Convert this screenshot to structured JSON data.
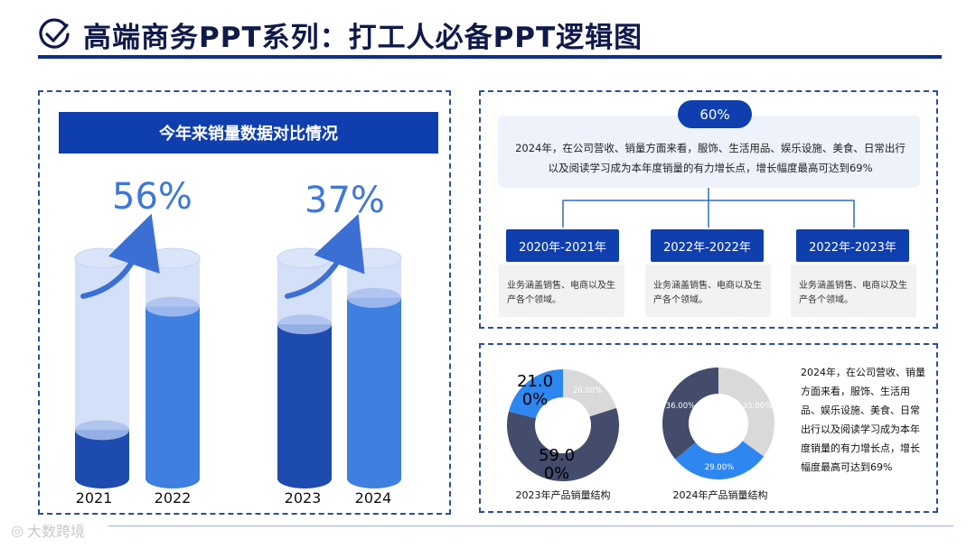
{
  "title": "高端商务PPT系列：打工人必备PPT逻辑图",
  "left_panel": {
    "header": "今年来销量数据对比情况",
    "pair1": {
      "pct": "56%",
      "years": [
        "2021",
        "2022"
      ],
      "levels": [
        0.22,
        0.78
      ]
    },
    "pair2": {
      "pct": "37%",
      "years": [
        "2023",
        "2024"
      ],
      "levels": [
        0.7,
        0.82
      ]
    }
  },
  "right_top": {
    "badge": "60%",
    "description": "2024年，在公司营收、销量方面来看，服饰、生活用品、娱乐设施、美食、日常出行以及阅读学习成为本年度销量的有力增长点，增长幅度最高可达到69%",
    "periods": [
      {
        "label": "2020年-2021年",
        "text": "业务涵盖销售、电商以及生产各个领域。"
      },
      {
        "label": "2022年-2022年",
        "text": "业务涵盖销售、电商以及生产各个领域。"
      },
      {
        "label": "2022年-2023年",
        "text": "业务涵盖销售、电商以及生产各个领域。"
      }
    ]
  },
  "right_bottom": {
    "donut1": {
      "caption": "2023年产品销量结构",
      "slices": [
        {
          "label": "20.00%",
          "value": 20,
          "color": "#d9d9d9"
        },
        {
          "label": "59.00%",
          "value": 59,
          "color": "#434c6b"
        },
        {
          "label": "21.00%",
          "value": 21,
          "color": "#2e86f0"
        }
      ],
      "big_labels": [
        "21.0\n0%",
        "59.0\n0%"
      ]
    },
    "donut2": {
      "caption": "2024年产品销量结构",
      "slices": [
        {
          "label": "35.00%",
          "value": 35,
          "color": "#d9d9d9"
        },
        {
          "label": "29.00%",
          "value": 29,
          "color": "#2e86f0"
        },
        {
          "label": "36.00%",
          "value": 36,
          "color": "#434c6b"
        }
      ]
    },
    "side_text": "2024年，在公司营收、销量方面来看，服饰、生活用品、娱乐设施、美食、日常出行以及阅读学习成为本年度销量的有力增长点，增长幅度最高可达到69%"
  },
  "watermark": "大数跨境",
  "colors": {
    "brand": "#0f3fae",
    "dark": "#434c6b",
    "accent": "#2e86f0",
    "light": "#d9d9d9"
  }
}
